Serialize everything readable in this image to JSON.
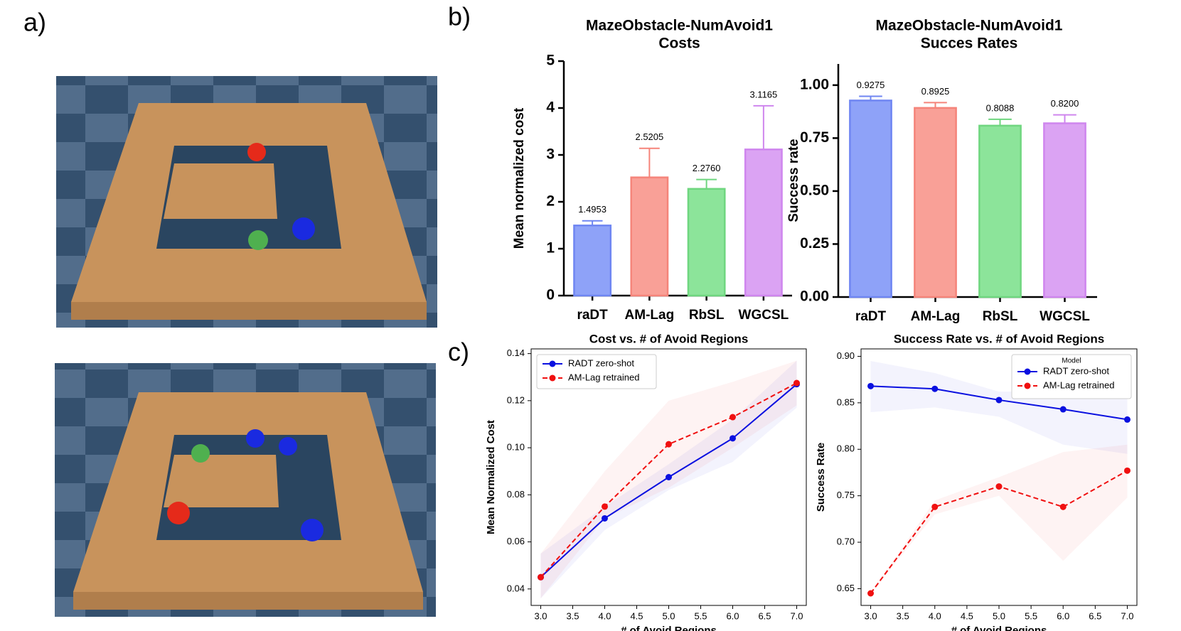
{
  "panel_labels": [
    "a)",
    "b)",
    "c)"
  ],
  "chart_data": [
    {
      "type": "bar",
      "title": [
        "MazeObstacle-NumAvoid1",
        "Costs"
      ],
      "ylabel": "Mean normalized cost",
      "categories": [
        "raDT",
        "AM-Lag",
        "RbSL",
        "WGCSL"
      ],
      "values": [
        1.4953,
        2.5205,
        2.276,
        3.1165
      ],
      "value_labels": [
        "1.4953",
        "2.5205",
        "2.2760",
        "3.1165"
      ],
      "errors": [
        0.1,
        0.62,
        0.2,
        0.93
      ],
      "colors": [
        "#8ea2f8",
        "#f9a097",
        "#8ce49a",
        "#dba3f3"
      ],
      "edge_colors": [
        "#6f86f2",
        "#f5847a",
        "#6fd67f",
        "#cf86ee"
      ],
      "ylim": [
        0,
        5
      ],
      "yticks": [
        0,
        1,
        2,
        3,
        4,
        5
      ]
    },
    {
      "type": "bar",
      "title": [
        "MazeObstacle-NumAvoid1",
        "Succes Rates"
      ],
      "ylabel": "Success rate",
      "categories": [
        "raDT",
        "AM-Lag",
        "RbSL",
        "WGCSL"
      ],
      "values": [
        0.9275,
        0.8925,
        0.8088,
        0.82
      ],
      "value_labels": [
        "0.9275",
        "0.8925",
        "0.8088",
        "0.8200"
      ],
      "errors": [
        0.02,
        0.025,
        0.03,
        0.04
      ],
      "colors": [
        "#8ea2f8",
        "#f9a097",
        "#8ce49a",
        "#dba3f3"
      ],
      "edge_colors": [
        "#6f86f2",
        "#f5847a",
        "#6fd67f",
        "#cf86ee"
      ],
      "ylim": [
        0,
        1.1
      ],
      "yticks": [
        {
          "value": 0,
          "label": "0.00"
        },
        {
          "value": 0.25,
          "label": "0.25"
        },
        {
          "value": 0.5,
          "label": "0.50"
        },
        {
          "value": 0.75,
          "label": "0.75"
        },
        {
          "value": 1,
          "label": "1.00"
        }
      ]
    },
    {
      "type": "line",
      "title": "Cost vs. # of Avoid Regions",
      "xlabel": "# of Avoid Regions",
      "ylabel": "Mean Normalized Cost",
      "x": [
        3,
        4,
        5,
        6,
        7
      ],
      "legend": "upper left",
      "series": [
        {
          "name": "RADT zero-shot",
          "color": "#0a10e0",
          "dash": false,
          "values": [
            0.045,
            0.07,
            0.0875,
            0.104,
            0.127
          ],
          "band_low": [
            0.036,
            0.065,
            0.082,
            0.094,
            0.117
          ],
          "band_high": [
            0.055,
            0.075,
            0.093,
            0.112,
            0.137
          ]
        },
        {
          "name": "AM-Lag retrained",
          "color": "#f01010",
          "dash": true,
          "values": [
            0.045,
            0.075,
            0.1015,
            0.113,
            0.1275
          ],
          "band_low": [
            0.036,
            0.07,
            0.083,
            0.1,
            0.118
          ],
          "band_high": [
            0.055,
            0.09,
            0.12,
            0.128,
            0.137
          ]
        }
      ],
      "xlim": [
        2.85,
        7.15
      ],
      "xticks": [
        {
          "value": 3,
          "label": "3.0"
        },
        3.5,
        {
          "value": 4,
          "label": "4.0"
        },
        4.5,
        {
          "value": 5,
          "label": "5.0"
        },
        5.5,
        {
          "value": 6,
          "label": "6.0"
        },
        6.5,
        {
          "value": 7,
          "label": "7.0"
        }
      ],
      "ylim": [
        0.033,
        0.142
      ],
      "yticks": [
        0.04,
        0.06,
        0.08,
        {
          "value": 0.1,
          "label": "0.10"
        },
        0.12,
        0.14
      ]
    },
    {
      "type": "line",
      "title": "Success Rate vs. # of Avoid Regions",
      "xlabel": "# of Avoid Regions",
      "ylabel": "Success Rate",
      "x": [
        3,
        4,
        5,
        6,
        7
      ],
      "legend": "upper right",
      "legend_title": "Model",
      "series": [
        {
          "name": "RADT zero-shot",
          "color": "#0a10e0",
          "dash": false,
          "values": [
            0.868,
            0.865,
            0.853,
            0.843,
            0.832
          ],
          "band_low": [
            0.84,
            0.845,
            0.835,
            0.805,
            0.795
          ],
          "band_high": [
            0.895,
            0.882,
            0.862,
            0.862,
            0.86
          ]
        },
        {
          "name": "AM-Lag retrained",
          "color": "#f01010",
          "dash": true,
          "values": [
            0.645,
            0.738,
            0.76,
            0.738,
            0.777
          ],
          "band_low": [
            0.645,
            0.73,
            0.75,
            0.68,
            0.748
          ],
          "band_high": [
            0.645,
            0.745,
            0.77,
            0.797,
            0.805
          ]
        }
      ],
      "xlim": [
        2.85,
        7.15
      ],
      "xticks": [
        {
          "value": 3,
          "label": "3.0"
        },
        3.5,
        {
          "value": 4,
          "label": "4.0"
        },
        4.5,
        {
          "value": 5,
          "label": "5.0"
        },
        5.5,
        {
          "value": 6,
          "label": "6.0"
        },
        6.5,
        {
          "value": 7,
          "label": "7.0"
        }
      ],
      "ylim": [
        0.632,
        0.908
      ],
      "yticks": [
        0.65,
        {
          "value": 0.7,
          "label": "0.70"
        },
        0.75,
        {
          "value": 0.8,
          "label": "0.80"
        },
        0.85,
        {
          "value": 0.9,
          "label": "0.90"
        }
      ]
    }
  ]
}
